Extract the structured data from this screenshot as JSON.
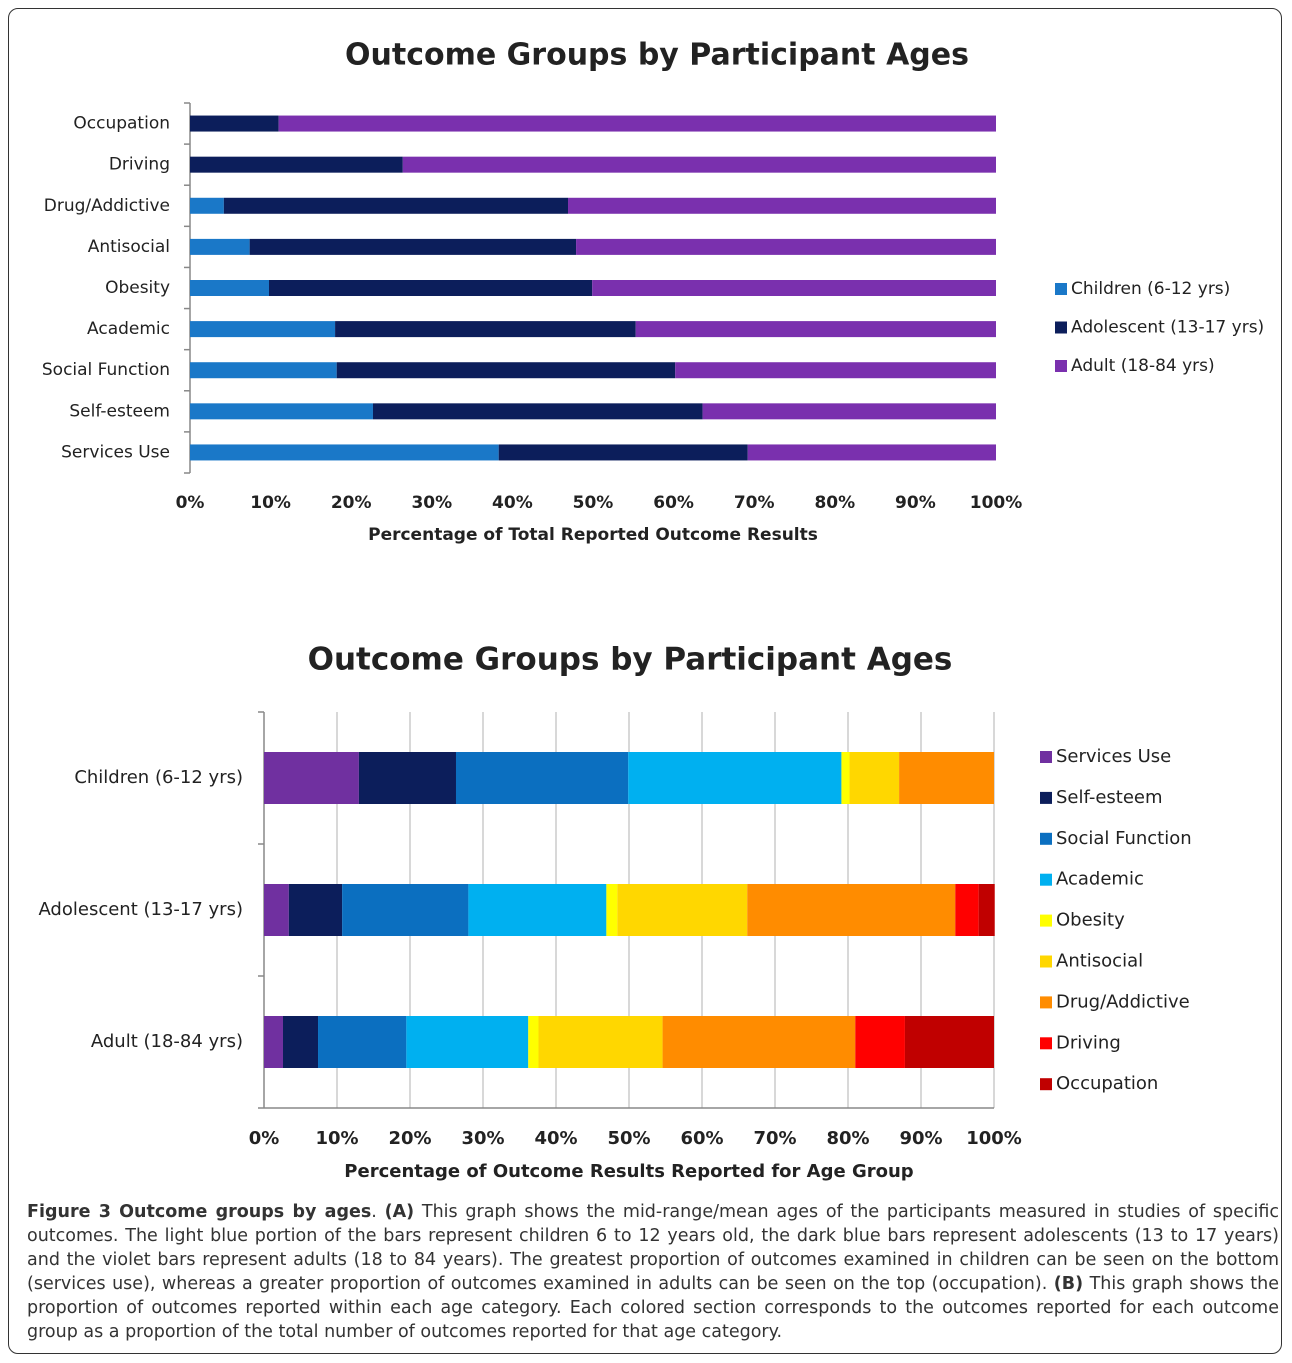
{
  "chart_data": [
    {
      "type": "stacked_barh",
      "title": "Outcome Groups by Participant Ages",
      "xlabel": "Percentage of Total Reported Outcome Results",
      "categories": [
        "Occupation",
        "Driving",
        "Drug/Addictive",
        "Antisocial",
        "Obesity",
        "Academic",
        "Social Function",
        "Self-esteem",
        "Services Use"
      ],
      "series": [
        {
          "name": "Children (6-12 yrs)",
          "color": "#1a78c8",
          "values": [
            0,
            0,
            4.2,
            7.4,
            9.8,
            18.0,
            18.2,
            22.7,
            38.3
          ]
        },
        {
          "name": "Adolescent (13-17 yrs)",
          "color": "#0c1e5b",
          "values": [
            11.0,
            26.4,
            42.7,
            40.5,
            40.1,
            37.3,
            42.0,
            40.9,
            30.9
          ]
        },
        {
          "name": "Adult (18-84 yrs)",
          "color": "#7a30ae",
          "values": [
            89.0,
            73.6,
            53.1,
            52.1,
            50.1,
            44.7,
            39.8,
            36.4,
            30.8
          ]
        }
      ],
      "xlim": [
        0,
        100
      ],
      "xticks": [
        {
          "value": 0,
          "label": "0%"
        },
        {
          "value": 10,
          "label": "10%"
        },
        {
          "value": 20,
          "label": "20%"
        },
        {
          "value": 30,
          "label": "30%"
        },
        {
          "value": 40,
          "label": "40%"
        },
        {
          "value": 50,
          "label": "50%"
        },
        {
          "value": 60,
          "label": "60%"
        },
        {
          "value": 70,
          "label": "70%"
        },
        {
          "value": 80,
          "label": "80%"
        },
        {
          "value": 90,
          "label": "90%"
        },
        {
          "value": 100,
          "label": "100%"
        }
      ],
      "grid": false,
      "legend": "right"
    },
    {
      "type": "stacked_barh",
      "title": "Outcome Groups by Participant Ages",
      "xlabel": "Percentage of Outcome Results Reported for Age Group",
      "categories": [
        "Children (6-12 yrs)",
        "Adolescent (13-17 yrs)",
        "Adult (18-84 yrs)"
      ],
      "series": [
        {
          "name": "Services Use",
          "color": "#7030a0",
          "values": [
            13.0,
            3.4,
            2.6
          ]
        },
        {
          "name": "Self-esteem",
          "color": "#0c1e5b",
          "values": [
            13.3,
            7.3,
            4.8
          ]
        },
        {
          "name": "Social Function",
          "color": "#0b6fc0",
          "values": [
            23.6,
            17.3,
            12.1
          ]
        },
        {
          "name": "Academic",
          "color": "#00b0f0",
          "values": [
            29.2,
            18.9,
            16.7
          ]
        },
        {
          "name": "Obesity",
          "color": "#ffff00",
          "values": [
            1.1,
            1.5,
            1.4
          ]
        },
        {
          "name": "Antisocial",
          "color": "#ffd700",
          "values": [
            6.8,
            17.8,
            17.0
          ]
        },
        {
          "name": "Drug/Addictive",
          "color": "#ff8c00",
          "values": [
            13.0,
            28.5,
            26.4
          ]
        },
        {
          "name": "Driving",
          "color": "#ff0000",
          "values": [
            0,
            3.2,
            6.8
          ]
        },
        {
          "name": "Occupation",
          "color": "#c00000",
          "values": [
            0,
            2.2,
            12.2
          ]
        }
      ],
      "xlim": [
        0,
        100
      ],
      "xticks": [
        {
          "value": 0,
          "label": "0%"
        },
        {
          "value": 10,
          "label": "10%"
        },
        {
          "value": 20,
          "label": "20%"
        },
        {
          "value": 30,
          "label": "30%"
        },
        {
          "value": 40,
          "label": "40%"
        },
        {
          "value": 50,
          "label": "50%"
        },
        {
          "value": 60,
          "label": "60%"
        },
        {
          "value": 70,
          "label": "70%"
        },
        {
          "value": 80,
          "label": "80%"
        },
        {
          "value": 90,
          "label": "90%"
        },
        {
          "value": 100,
          "label": "100%"
        }
      ],
      "grid": true,
      "legend": "right"
    }
  ],
  "caption": {
    "label": "Figure 3 Outcome groups by ages",
    "label_end": ".",
    "a_label": "(A)",
    "a_text": "This graph shows the mid-range/mean ages of the participants measured in studies of specific outcomes. The light blue portion of the bars represent children 6 to 12 years old, the dark blue bars represent adolescents (13 to 17 years) and the violet bars represent adults (18 to 84 years). The greatest proportion of outcomes examined in children can be seen on the bottom (services use), whereas a greater proportion of outcomes examined in adults can be seen on the top (occupation).",
    "b_label": "(B)",
    "b_text": "This graph shows the proportion of outcomes reported within each age category. Each colored section corresponds to the outcomes reported for each outcome group as a proportion of the total number of outcomes reported for that age category."
  }
}
